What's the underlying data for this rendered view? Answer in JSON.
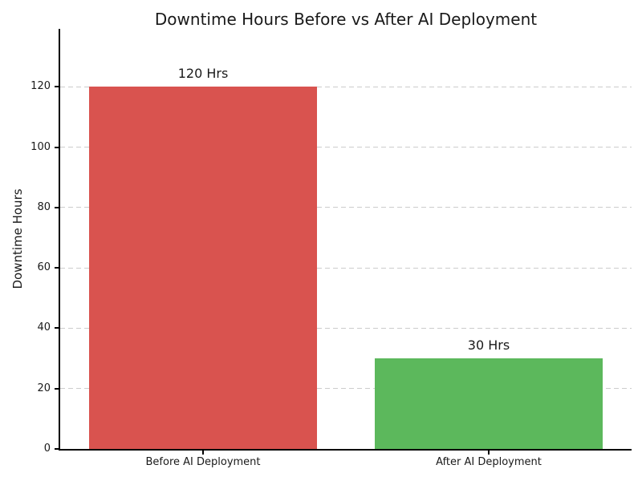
{
  "chart_data": {
    "type": "bar",
    "title": "Downtime Hours Before vs After AI Deployment",
    "xlabel": "",
    "ylabel": "Downtime Hours",
    "categories": [
      "Before AI Deployment",
      "After AI Deployment"
    ],
    "values": [
      120,
      30
    ],
    "bar_labels": [
      "120 Hrs",
      "30 Hrs"
    ],
    "bar_colors": [
      "#d9534f",
      "#5cb85c"
    ],
    "yticks": [
      0,
      20,
      40,
      60,
      80,
      100,
      120
    ],
    "ylim": [
      0,
      139
    ],
    "bar_width_fraction": 0.8,
    "grid": "horizontal-dashed",
    "gridline_color": "#cccccc",
    "legend": "none",
    "background_color": "#ffffff",
    "text_color": "#1a1a1a",
    "spine_color": "#000000"
  }
}
